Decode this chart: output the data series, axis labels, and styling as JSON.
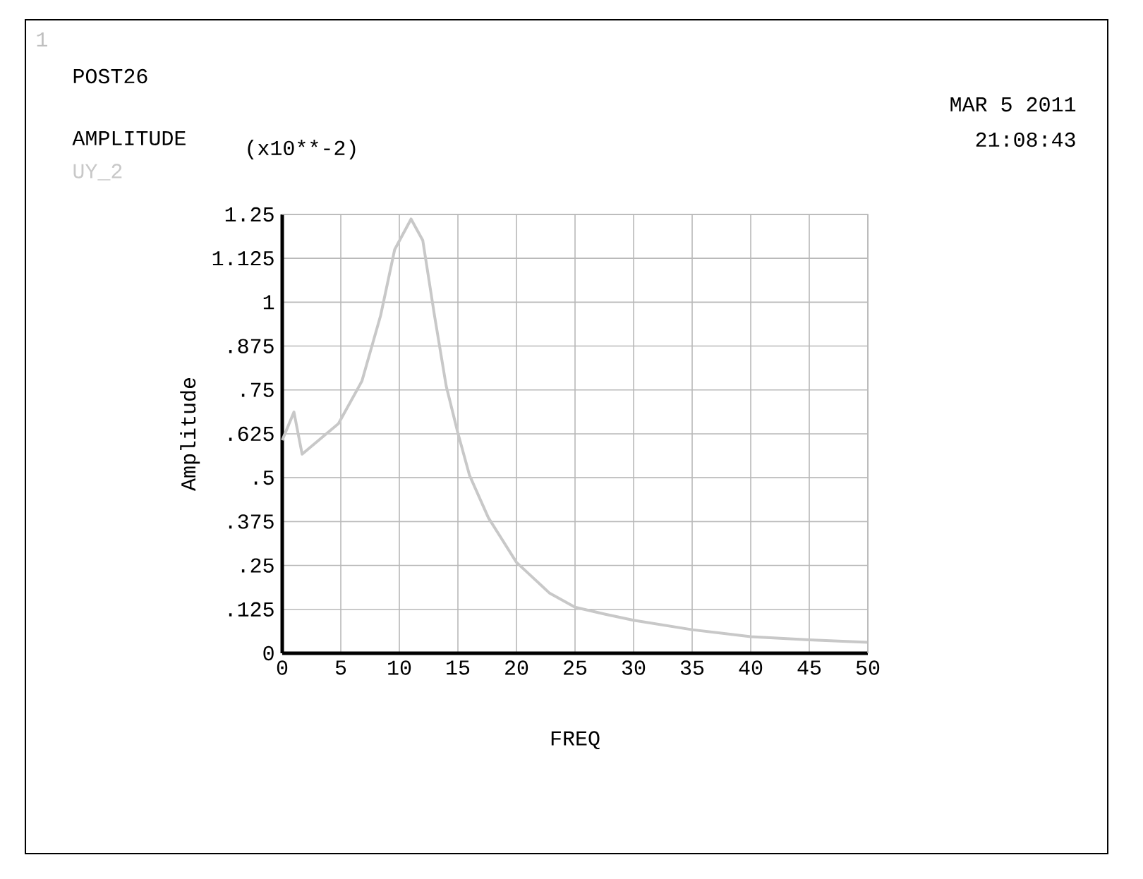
{
  "chart_data": {
    "type": "line",
    "title": "POST26",
    "xlabel": "FREQ",
    "ylabel": "Amplitude",
    "annotations": [
      "1",
      "AMPLITUDE",
      "(x10**-2)",
      "MAR 5 2011",
      "21:08:43"
    ],
    "x": [
      0,
      1.0,
      1.7,
      4.8,
      6.8,
      8.4,
      9.6,
      11.0,
      12.0,
      13.0,
      14.0,
      15.0,
      16.0,
      17.6,
      20.0,
      22.8,
      25.0,
      27.6,
      30,
      35,
      40,
      45,
      50
    ],
    "series": [
      {
        "name": "UY_2",
        "color": "#c8c8c8",
        "values": [
          0.607,
          0.687,
          0.567,
          0.654,
          0.775,
          0.962,
          1.15,
          1.237,
          1.176,
          0.962,
          0.761,
          0.627,
          0.506,
          0.386,
          0.259,
          0.172,
          0.131,
          0.111,
          0.094,
          0.067,
          0.047,
          0.038,
          0.031
        ]
      }
    ],
    "xlim": [
      0,
      50
    ],
    "xticks": [
      0,
      5,
      10,
      15,
      20,
      25,
      30,
      35,
      40,
      45,
      50
    ],
    "ylim": [
      0,
      1.25
    ],
    "yticks": [
      0,
      {
        "value": 0.125,
        "label": ".125"
      },
      {
        "value": 0.25,
        "label": ".25"
      },
      {
        "value": 0.375,
        "label": ".375"
      },
      {
        "value": 0.5,
        "label": ".5"
      },
      {
        "value": 0.625,
        "label": ".625"
      },
      {
        "value": 0.75,
        "label": ".75"
      },
      {
        "value": 0.875,
        "label": ".875"
      },
      1,
      1.125,
      1.25
    ],
    "grid": true,
    "marker": "none",
    "line_style": "solid"
  }
}
